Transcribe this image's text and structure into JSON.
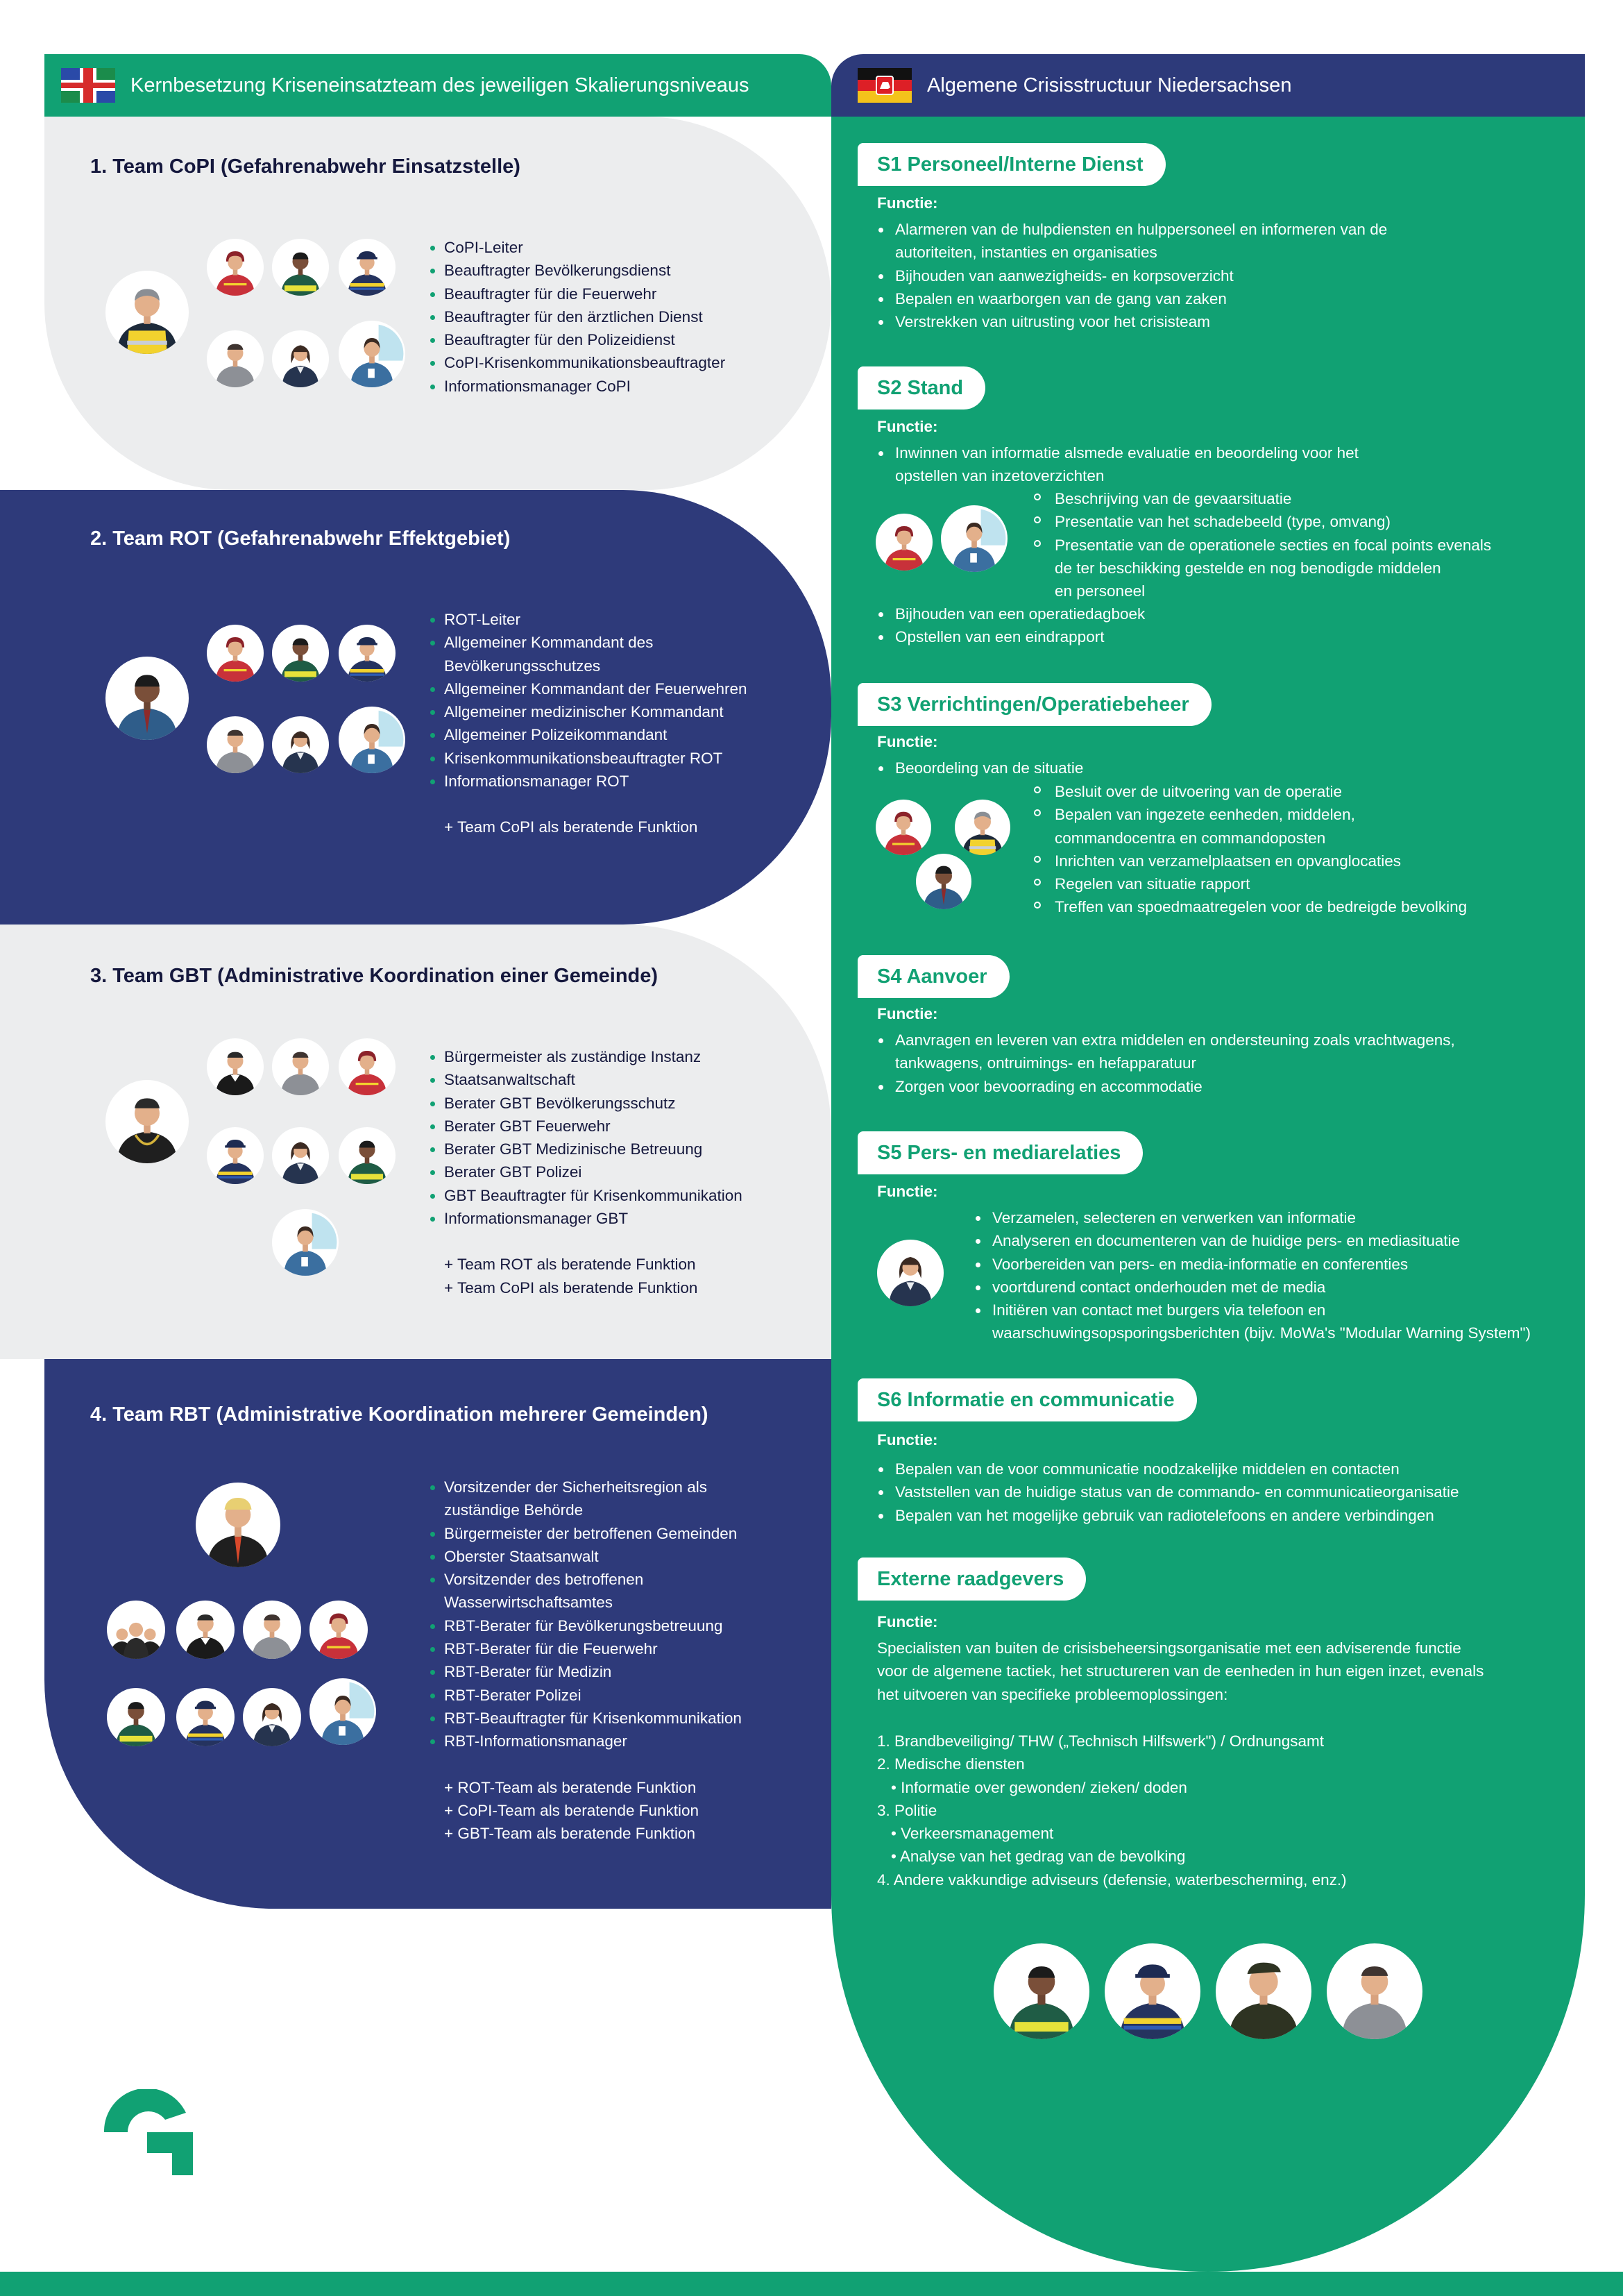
{
  "header_left": {
    "title": "Kernbesetzung Kriseneinsatzteam des jeweiligen Skalierungsniveaus"
  },
  "header_right": {
    "title": "Algemene Crisisstructuur Niedersachsen"
  },
  "teams": [
    {
      "title": "1. Team CoPI (Gefahrenabwehr Einsatzstelle)",
      "roles": [
        "CoPI-Leiter",
        "Beauftragter Bevölkerungsdienst",
        "Beauftragter für die Feuerwehr",
        "Beauftragter für den ärztlichen Dienst",
        "Beauftragter für den Polizeidienst",
        "CoPI-Krisenkommunikationsbeauftragter",
        "Informationsmanager CoPI"
      ],
      "extra": []
    },
    {
      "title": "2. Team ROT (Gefahrenabwehr Effektgebiet)",
      "roles": [
        "ROT-Leiter",
        "Allgemeiner Kommandant des",
        "Bevölkerungsschutzes",
        "Allgemeiner Kommandant der Feuerwehren",
        "Allgemeiner medizinischer Kommandant",
        "Allgemeiner Polizeikommandant",
        "Krisenkommunikationsbeauftragter ROT",
        "Informationsmanager ROT"
      ],
      "extra": [
        "+ Team CoPI als beratende Funktion"
      ]
    },
    {
      "title": "3. Team GBT (Administrative Koordination einer Gemeinde)",
      "roles": [
        "Bürgermeister als zuständige Instanz",
        "Staatsanwaltschaft",
        "Berater GBT Bevölkerungsschutz",
        "Berater GBT Feuerwehr",
        "Berater GBT Medizinische Betreuung",
        "Berater GBT Polizei",
        "GBT Beauftragter für Krisenkommunikation",
        "Informationsmanager GBT"
      ],
      "extra": [
        "+ Team ROT als beratende Funktion",
        "+ Team CoPI als beratende Funktion"
      ]
    },
    {
      "title": "4. Team RBT (Administrative Koordination mehrerer Gemeinden)",
      "roles": [
        "Vorsitzender der Sicherheitsregion als",
        "zuständige Behörde",
        "Bürgermeister der betroffenen Gemeinden",
        "Oberster Staatsanwalt",
        "Vorsitzender des betroffenen",
        "Wasserwirtschaftsamtes",
        "RBT-Berater für Bevölkerungsbetreuung",
        "RBT-Berater für die Feuerwehr",
        "RBT-Berater für Medizin",
        "RBT-Berater Polizei",
        "RBT-Beauftragter für Krisenkommunikation",
        "RBT-Informationsmanager"
      ],
      "extra": [
        "+ ROT-Team als beratende Funktion",
        "+ CoPI-Team als beratende Funktion",
        "+ GBT-Team als beratende Funktion"
      ]
    }
  ],
  "sections": {
    "function_label": "Functie:",
    "s1": {
      "title": "S1 Personeel/Interne Dienst",
      "items": [
        "Alarmeren van de hulpdiensten en hulppersoneel en informeren van de",
        "autoriteiten, instanties en organisaties",
        "Bijhouden van aanwezigheids- en korpsoverzicht",
        "Bepalen en waarborgen van de gang van zaken",
        "Verstrekken van uitrusting voor het crisisteam"
      ]
    },
    "s2": {
      "title": "S2 Stand",
      "items": [
        "Inwinnen van informatie alsmede evaluatie en beoordeling voor het",
        "opstellen van inzetoverzichten"
      ],
      "sub": [
        "Beschrijving van de gevaarsituatie",
        "Presentatie van het schadebeeld (type, omvang)",
        "Presentatie van de operationele secties en focal points evenals",
        "de ter beschikking gestelde en nog benodigde middelen",
        "en personeel"
      ],
      "items2": [
        "Bijhouden van een operatiedagboek",
        "Opstellen van een eindrapport"
      ]
    },
    "s3": {
      "title": "S3 Verrichtingen/Operatiebeheer",
      "items": [
        "Beoordeling van de situatie"
      ],
      "sub": [
        "Besluit over de uitvoering van de operatie",
        "Bepalen van ingezete eenheden, middelen,",
        "commandocentra en commandoposten",
        "Inrichten van verzamelplaatsen en opvanglocaties",
        "Regelen van situatie rapport",
        "Treffen van spoedmaatregelen voor de bedreigde bevolking"
      ]
    },
    "s4": {
      "title": "S4 Aanvoer",
      "items": [
        "Aanvragen en leveren van extra middelen en ondersteuning zoals vrachtwagens,",
        "tankwagens, ontruimings- en hefapparatuur",
        "Zorgen voor bevoorrading en accommodatie"
      ]
    },
    "s5": {
      "title": "S5 Pers- en mediarelaties",
      "items": [
        "Verzamelen, selecteren en verwerken van informatie",
        "Analyseren en documenteren van de huidige pers- en mediasituatie",
        "Voorbereiden van pers- en media-informatie en conferenties",
        "voortdurend contact onderhouden met de media",
        "Initiëren van contact met burgers via telefoon en",
        "waarschuwingsopsporingsberichten (bijv. MoWa's \"Modular Warning System\")"
      ]
    },
    "s6": {
      "title": "S6 Informatie en communicatie",
      "items": [
        "Bepalen van de voor communicatie noodzakelijke middelen en contacten",
        "Vaststellen van de huidige status van de commando- en communicatieorganisatie",
        "Bepalen van het mogelijke gebruik van radiotelefoons en andere verbindingen"
      ]
    },
    "ext": {
      "title": "Externe raadgevers",
      "intro": [
        "Specialisten van buiten de crisisbeheersingsorganisatie met een adviserende functie",
        "voor de algemene tactiek, het structureren van de eenheden in hun eigen inzet, evenals",
        "het uitvoeren van specifieke probleemoplossingen:"
      ],
      "list": [
        "1. Brandbeveiliging/ THW („Technisch Hilfswerk\") / Ordnungsamt",
        "2. Medische diensten",
        "• Informatie over gewonden/ zieken/ doden",
        "3. Politie",
        "• Verkeersmanagement",
        "• Analyse van het gedrag van de bevolking",
        "4. Andere vakkundige adviseurs (defensie, waterbescherming, enz.)"
      ]
    }
  },
  "colors": {
    "green": "#11a173",
    "navy": "#2e3a7a",
    "light_gray": "#ecedee"
  }
}
